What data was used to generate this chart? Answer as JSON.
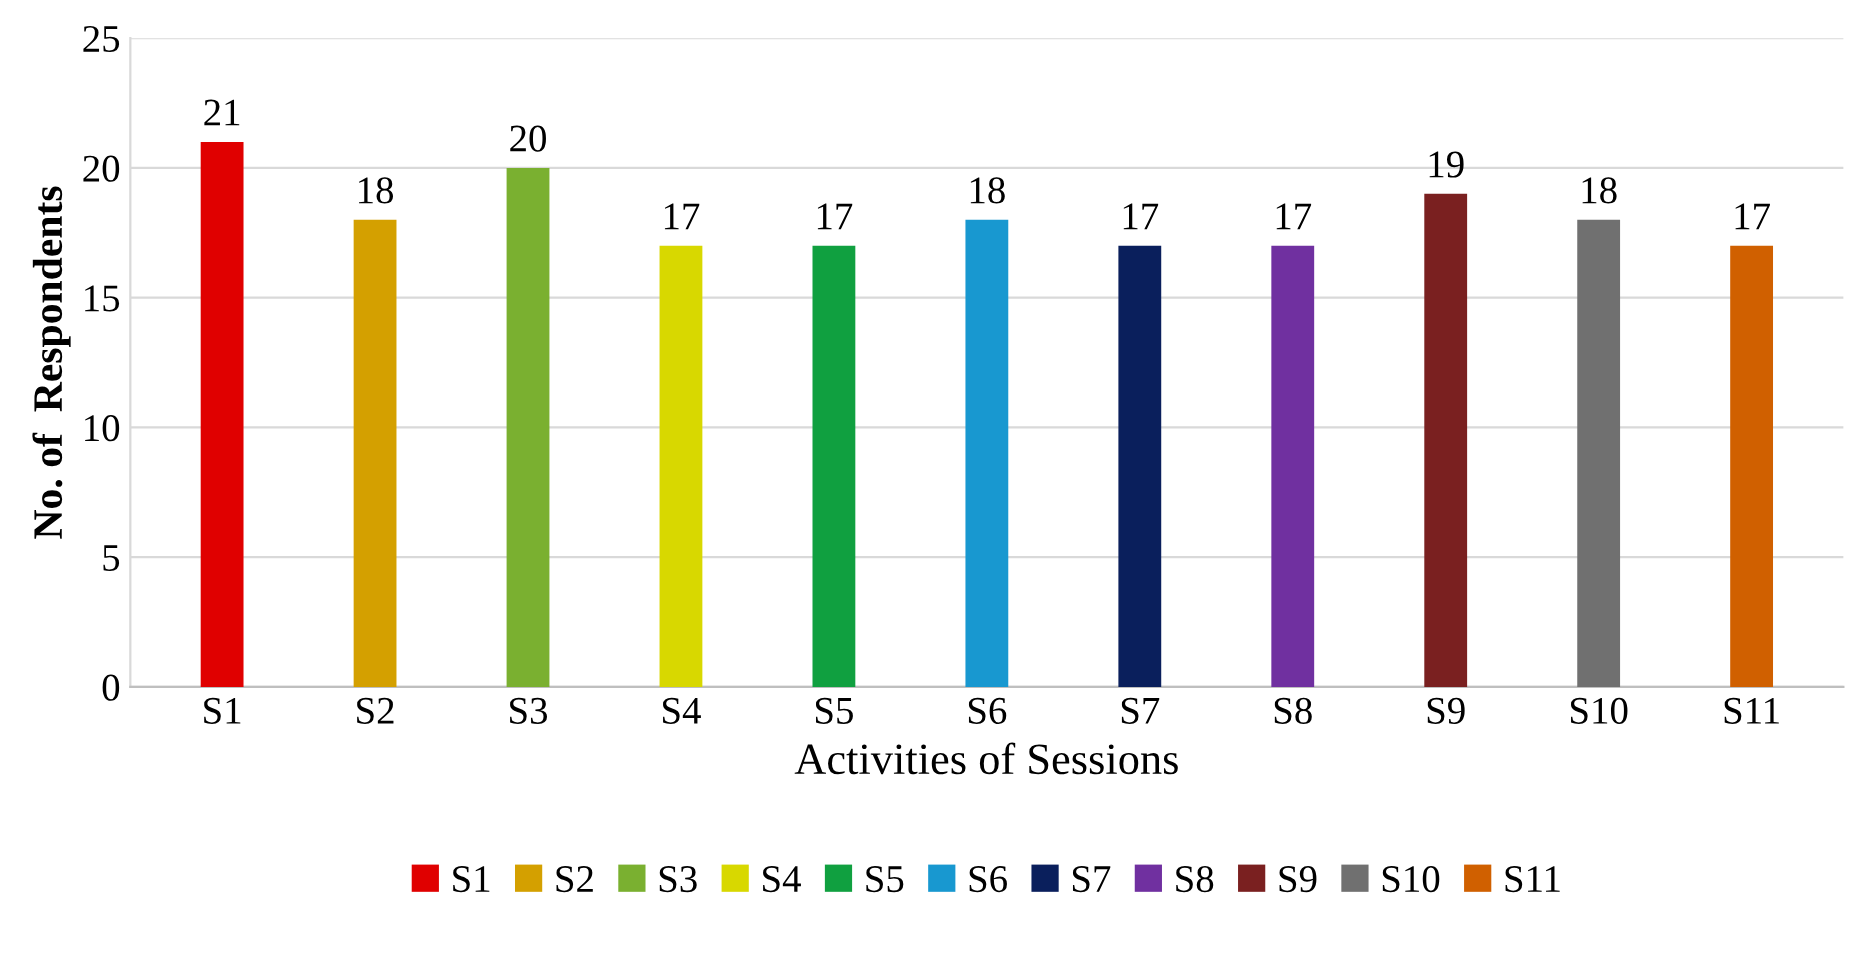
{
  "chart_data": {
    "type": "bar",
    "xlabel": "Activities of Sessions",
    "ylabel": "No. of  Respondents",
    "categories": [
      "S1",
      "S2",
      "S3",
      "S4",
      "S5",
      "S6",
      "S7",
      "S8",
      "S9",
      "S10",
      "S11"
    ],
    "series": [
      {
        "name": "S1",
        "color": "#e00000",
        "values": [
          21,
          null,
          null,
          null,
          null,
          null,
          null,
          null,
          null,
          null,
          null
        ]
      },
      {
        "name": "S2",
        "color": "#d4a000",
        "values": [
          null,
          18,
          null,
          null,
          null,
          null,
          null,
          null,
          null,
          null,
          null
        ]
      },
      {
        "name": "S3",
        "color": "#7ab030",
        "values": [
          null,
          null,
          20,
          null,
          null,
          null,
          null,
          null,
          null,
          null,
          null
        ]
      },
      {
        "name": "S4",
        "color": "#d8d800",
        "values": [
          null,
          null,
          null,
          17,
          null,
          null,
          null,
          null,
          null,
          null,
          null
        ]
      },
      {
        "name": "S5",
        "color": "#10a040",
        "values": [
          null,
          null,
          null,
          null,
          17,
          null,
          null,
          null,
          null,
          null,
          null
        ]
      },
      {
        "name": "S6",
        "color": "#1898d0",
        "values": [
          null,
          null,
          null,
          null,
          null,
          18,
          null,
          null,
          null,
          null,
          null
        ]
      },
      {
        "name": "S7",
        "color": "#0a1f5c",
        "values": [
          null,
          null,
          null,
          null,
          null,
          null,
          17,
          null,
          null,
          null,
          null
        ]
      },
      {
        "name": "S8",
        "color": "#7030a0",
        "values": [
          null,
          null,
          null,
          null,
          null,
          null,
          null,
          17,
          null,
          null,
          null
        ]
      },
      {
        "name": "S9",
        "color": "#7a2020",
        "values": [
          null,
          null,
          null,
          null,
          null,
          null,
          null,
          null,
          19,
          null,
          null
        ]
      },
      {
        "name": "S10",
        "color": "#707070",
        "values": [
          null,
          null,
          null,
          null,
          null,
          null,
          null,
          null,
          null,
          18,
          null
        ]
      },
      {
        "name": "S11",
        "color": "#d06000",
        "values": [
          null,
          null,
          null,
          null,
          null,
          null,
          null,
          null,
          null,
          null,
          17
        ]
      }
    ],
    "ylim": [
      0,
      25
    ],
    "yticks": [
      0,
      5,
      10,
      15,
      20,
      25
    ],
    "grid": "y",
    "data_labels": true,
    "legend": "bottom"
  }
}
